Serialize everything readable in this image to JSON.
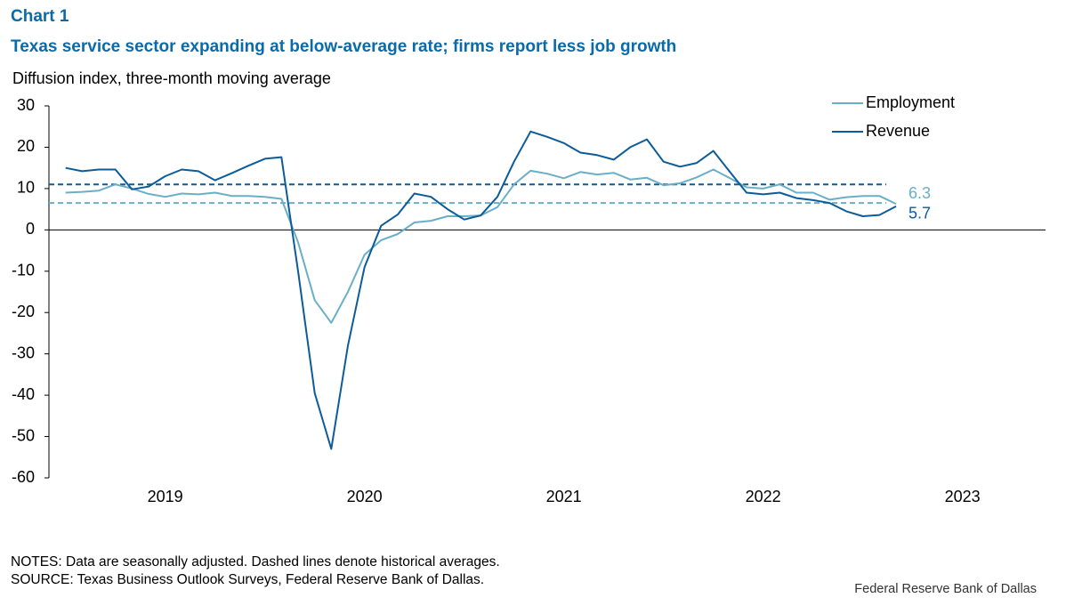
{
  "chart_data": {
    "type": "line",
    "title": "Chart 1",
    "subtitle": "Texas service sector expanding at below-average rate; firms report less job growth",
    "y_label": "Diffusion index, three-month moving average",
    "x": [
      "2019-01",
      "2019-02",
      "2019-03",
      "2019-04",
      "2019-05",
      "2019-06",
      "2019-07",
      "2019-08",
      "2019-09",
      "2019-10",
      "2019-11",
      "2019-12",
      "2020-01",
      "2020-02",
      "2020-03",
      "2020-04",
      "2020-05",
      "2020-06",
      "2020-07",
      "2020-08",
      "2020-09",
      "2020-10",
      "2020-11",
      "2020-12",
      "2021-01",
      "2021-02",
      "2021-03",
      "2021-04",
      "2021-05",
      "2021-06",
      "2021-07",
      "2021-08",
      "2021-09",
      "2021-10",
      "2021-11",
      "2021-12",
      "2022-01",
      "2022-02",
      "2022-03",
      "2022-04",
      "2022-05",
      "2022-06",
      "2022-07",
      "2022-08",
      "2022-09",
      "2022-10",
      "2022-11",
      "2022-12",
      "2023-01",
      "2023-02",
      "2023-03"
    ],
    "series": [
      {
        "name": "Employment",
        "color": "#6aafc8",
        "average": 6.5,
        "values": [
          9,
          9.2,
          9.5,
          11,
          10,
          8.7,
          8,
          8.8,
          8.6,
          9,
          8.2,
          8.2,
          8,
          7.5,
          -3,
          -17,
          -22.5,
          -15,
          -6,
          -2.5,
          -1,
          1.8,
          2.2,
          3.3,
          3.3,
          3.5,
          5.5,
          11,
          14.3,
          13.6,
          12.5,
          14,
          13.4,
          13.8,
          12.2,
          12.6,
          10.8,
          11.3,
          12.7,
          14.6,
          12.5,
          10.3,
          10,
          11,
          9,
          9,
          7.3,
          7.9,
          8.2,
          8.2,
          6.3
        ]
      },
      {
        "name": "Revenue",
        "color": "#0b5c98",
        "average": 11,
        "values": [
          15,
          14.2,
          14.6,
          14.6,
          9.8,
          10.5,
          13,
          14.6,
          14.2,
          12,
          13.7,
          15.5,
          17.2,
          17.6,
          -10,
          -39.5,
          -53,
          -28,
          -9,
          1,
          3.7,
          8.8,
          8,
          5,
          2.5,
          3.5,
          8,
          16.5,
          23.8,
          22.5,
          21,
          18.7,
          18.1,
          17,
          20,
          21.9,
          16.5,
          15.3,
          16.2,
          19.1,
          14,
          9,
          8.6,
          9,
          7.7,
          7.2,
          6.5,
          4.5,
          3.3,
          3.6,
          5.7
        ]
      }
    ],
    "xlim": [
      "2018-12",
      "2023-12"
    ],
    "xticks": [
      {
        "value": "2019-07",
        "label": "2019"
      },
      {
        "value": "2020-07",
        "label": "2020"
      },
      {
        "value": "2021-07",
        "label": "2021"
      },
      {
        "value": "2022-07",
        "label": "2022"
      },
      {
        "value": "2023-07",
        "label": "2023"
      }
    ],
    "ylim": [
      -60,
      30
    ],
    "yticks": [
      -60,
      -50,
      -40,
      -30,
      -20,
      -10,
      0,
      10,
      20,
      30
    ],
    "legend": "top-right",
    "notes": "NOTES: Data are seasonally adjusted. Dashed lines denote historical averages.",
    "source": "SOURCE: Texas Business Outlook Surveys, Federal Reserve Bank of Dallas.",
    "credit": "Federal Reserve Bank of Dallas"
  }
}
